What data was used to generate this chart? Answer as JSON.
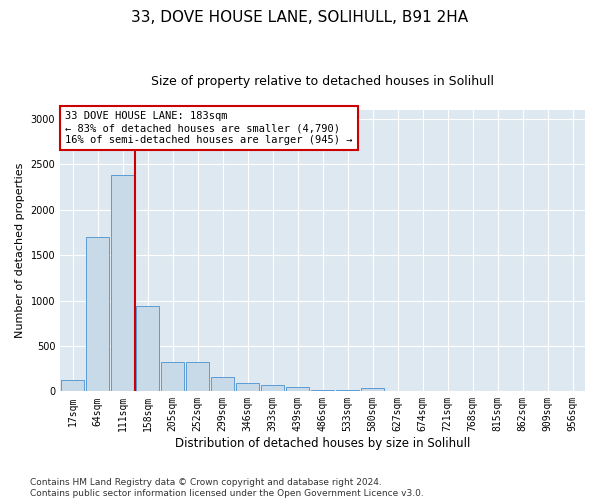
{
  "title": "33, DOVE HOUSE LANE, SOLIHULL, B91 2HA",
  "subtitle": "Size of property relative to detached houses in Solihull",
  "xlabel": "Distribution of detached houses by size in Solihull",
  "ylabel": "Number of detached properties",
  "categories": [
    "17sqm",
    "64sqm",
    "111sqm",
    "158sqm",
    "205sqm",
    "252sqm",
    "299sqm",
    "346sqm",
    "393sqm",
    "439sqm",
    "486sqm",
    "533sqm",
    "580sqm",
    "627sqm",
    "674sqm",
    "721sqm",
    "768sqm",
    "815sqm",
    "862sqm",
    "909sqm",
    "956sqm"
  ],
  "values": [
    130,
    1700,
    2380,
    940,
    325,
    325,
    155,
    90,
    65,
    50,
    20,
    15,
    40,
    0,
    0,
    0,
    0,
    0,
    0,
    0,
    0
  ],
  "bar_color": "#c8d9e8",
  "bar_edge_color": "#5b9bd5",
  "vline_color": "#cc0000",
  "annotation_text": "33 DOVE HOUSE LANE: 183sqm\n← 83% of detached houses are smaller (4,790)\n16% of semi-detached houses are larger (945) →",
  "annotation_box_color": "white",
  "annotation_box_edge": "#cc0000",
  "ylim": [
    0,
    3100
  ],
  "yticks": [
    0,
    500,
    1000,
    1500,
    2000,
    2500,
    3000
  ],
  "bg_color": "#dde8f0",
  "title_fontsize": 11,
  "subtitle_fontsize": 9,
  "xlabel_fontsize": 8.5,
  "ylabel_fontsize": 8,
  "tick_fontsize": 7,
  "footer_fontsize": 6.5,
  "footer": "Contains HM Land Registry data © Crown copyright and database right 2024.\nContains public sector information licensed under the Open Government Licence v3.0."
}
